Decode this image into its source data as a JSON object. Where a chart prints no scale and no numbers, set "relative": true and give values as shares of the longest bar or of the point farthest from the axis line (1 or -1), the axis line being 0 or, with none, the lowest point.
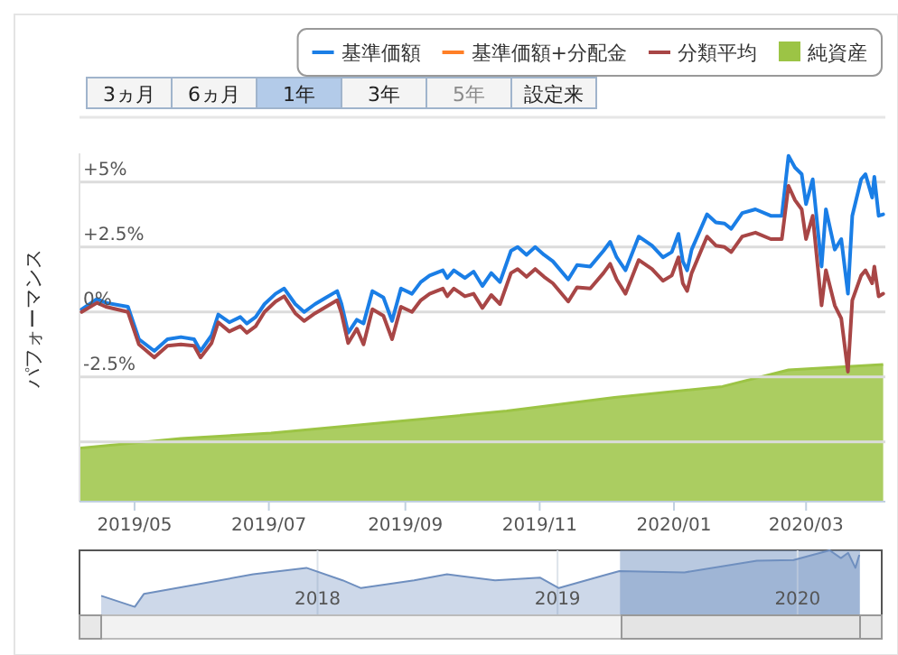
{
  "chart_data": [
    {
      "type": "line",
      "ylabel": "パフォーマンス",
      "legend": "top right",
      "grid": "y",
      "annotations": [
        "3ヵ月",
        "6ヵ月",
        "1年",
        "3年",
        "5年",
        "設定来"
      ],
      "xlim": [
        "2019-04-06",
        "2020-04-06"
      ],
      "ylim": [
        -7.3,
        6.1
      ],
      "xticks": [
        {
          "value": "2019-05-01",
          "label": "2019/05"
        },
        {
          "value": "2019-07-01",
          "label": "2019/07"
        },
        {
          "value": "2019-09-01",
          "label": "2019/09"
        },
        {
          "value": "2019-11-01",
          "label": "2019/11"
        },
        {
          "value": "2020-01-01",
          "label": "2020/01"
        },
        {
          "value": "2020-03-01",
          "label": "2020/03"
        }
      ],
      "yticks": [
        {
          "value": 5,
          "label": "+5%"
        },
        {
          "value": 2.5,
          "label": "+2.5%"
        },
        {
          "value": 0,
          "label": "0%"
        },
        {
          "value": -2.5,
          "label": "-2.5%"
        },
        {
          "value": -5,
          "label": null
        }
      ],
      "x": [
        "2019-04-07",
        "2019-04-14",
        "2019-04-18",
        "2019-04-28",
        "2019-05-03",
        "2019-05-10",
        "2019-05-16",
        "2019-05-22",
        "2019-05-28",
        "2019-05-31",
        "2019-06-05",
        "2019-06-08",
        "2019-06-13",
        "2019-06-18",
        "2019-06-21",
        "2019-06-25",
        "2019-06-29",
        "2019-07-04",
        "2019-07-08",
        "2019-07-13",
        "2019-07-17",
        "2019-07-22",
        "2019-07-27",
        "2019-08-01",
        "2019-08-03",
        "2019-08-06",
        "2019-08-10",
        "2019-08-13",
        "2019-08-17",
        "2019-08-22",
        "2019-08-26",
        "2019-08-30",
        "2019-09-04",
        "2019-09-08",
        "2019-09-12",
        "2019-09-18",
        "2019-09-20",
        "2019-09-23",
        "2019-09-28",
        "2019-10-02",
        "2019-10-06",
        "2019-10-10",
        "2019-10-14",
        "2019-10-19",
        "2019-10-22",
        "2019-10-26",
        "2019-10-30",
        "2019-11-03",
        "2019-11-07",
        "2019-11-14",
        "2019-11-18",
        "2019-11-24",
        "2019-11-30",
        "2019-12-03",
        "2019-12-06",
        "2019-12-10",
        "2019-12-16",
        "2019-12-22",
        "2019-12-27",
        "2019-12-31",
        "2020-01-03",
        "2020-01-05",
        "2020-01-07",
        "2020-01-09",
        "2020-01-16",
        "2020-01-20",
        "2020-01-24",
        "2020-01-27",
        "2020-02-01",
        "2020-02-07",
        "2020-02-14",
        "2020-02-19",
        "2020-02-22",
        "2020-02-25",
        "2020-02-28",
        "2020-03-01",
        "2020-03-04",
        "2020-03-08",
        "2020-03-10",
        "2020-03-14",
        "2020-03-17",
        "2020-03-20",
        "2020-03-22",
        "2020-03-26",
        "2020-03-28",
        "2020-03-31",
        "2020-04-01",
        "2020-04-03",
        "2020-04-05"
      ],
      "series": [
        {
          "name": "基準価額",
          "color": "#1a7ee6",
          "values": [
            0.1,
            0.5,
            0.35,
            0.2,
            -1.05,
            -1.5,
            -1.05,
            -0.97,
            -1.05,
            -1.5,
            -0.9,
            -0.1,
            -0.4,
            -0.2,
            -0.45,
            -0.2,
            0.3,
            0.7,
            0.9,
            0.3,
            0.0,
            0.3,
            0.55,
            0.8,
            0.3,
            -0.8,
            -0.3,
            -0.45,
            0.8,
            0.55,
            -0.35,
            0.9,
            0.7,
            1.15,
            1.4,
            1.6,
            1.3,
            1.6,
            1.3,
            1.55,
            1.0,
            1.5,
            1.15,
            2.35,
            2.5,
            2.2,
            2.5,
            2.2,
            1.95,
            1.25,
            1.8,
            1.75,
            2.35,
            2.7,
            2.1,
            1.6,
            2.9,
            2.55,
            2.1,
            2.3,
            3.0,
            1.95,
            1.6,
            2.4,
            3.75,
            3.45,
            3.4,
            3.2,
            3.8,
            3.95,
            3.7,
            3.7,
            6.0,
            5.55,
            5.3,
            4.15,
            5.1,
            1.75,
            3.95,
            2.4,
            2.8,
            0.7,
            3.7,
            5.1,
            5.3,
            4.4,
            5.2,
            3.7,
            3.75
          ]
        },
        {
          "name": "基準価額+分配金",
          "color": "#ff7f27",
          "values": [
            null,
            null,
            null,
            null,
            null,
            null,
            null,
            null,
            null,
            null,
            null,
            null,
            null,
            null,
            null,
            null,
            null,
            null,
            null,
            null,
            null,
            null,
            null,
            null,
            null,
            null,
            null,
            null,
            null,
            null,
            null,
            null,
            null,
            null,
            null,
            null,
            null,
            null,
            null,
            null,
            null,
            null,
            null,
            null,
            null,
            null,
            null,
            null,
            null,
            null,
            null,
            null,
            null,
            null,
            null,
            null,
            null,
            null,
            null,
            null,
            null,
            null,
            null,
            null,
            null,
            null,
            null,
            null,
            null,
            null,
            null,
            null,
            null,
            null,
            null,
            null,
            null,
            null,
            null,
            null,
            null,
            null,
            null,
            null,
            null,
            null,
            null,
            null,
            null
          ]
        },
        {
          "name": "分類平均",
          "color": "#a84646",
          "values": [
            0.0,
            0.35,
            0.2,
            0.0,
            -1.25,
            -1.75,
            -1.3,
            -1.25,
            -1.3,
            -1.75,
            -1.2,
            -0.4,
            -0.75,
            -0.55,
            -0.8,
            -0.55,
            0.0,
            0.4,
            0.6,
            -0.05,
            -0.35,
            -0.05,
            0.2,
            0.45,
            -0.05,
            -1.2,
            -0.65,
            -1.25,
            0.1,
            -0.15,
            -1.05,
            0.2,
            0.0,
            0.45,
            0.7,
            0.9,
            0.6,
            0.9,
            0.6,
            0.7,
            0.15,
            0.65,
            0.3,
            1.5,
            1.65,
            1.35,
            1.65,
            1.35,
            1.1,
            0.4,
            0.95,
            0.9,
            1.5,
            1.85,
            1.25,
            0.7,
            2.0,
            1.65,
            1.2,
            1.4,
            2.1,
            1.1,
            0.8,
            1.5,
            2.9,
            2.55,
            2.5,
            2.3,
            2.9,
            3.05,
            2.8,
            2.8,
            4.85,
            4.3,
            3.95,
            2.8,
            3.7,
            0.25,
            1.6,
            0.25,
            -0.25,
            -2.3,
            0.45,
            1.4,
            1.6,
            1.1,
            1.75,
            0.6,
            0.7
          ]
        }
      ]
    },
    {
      "type": "area",
      "relative": true,
      "xlim": [
        "2019-04-06",
        "2020-04-06"
      ],
      "x": [
        "2019-04-06",
        "2019-05-22",
        "2019-07-02",
        "2019-08-12",
        "2019-10-17",
        "2019-12-05",
        "2020-01-23",
        "2020-02-22",
        "2020-04-05"
      ],
      "series": [
        {
          "name": "純資産",
          "color": "#9cc445",
          "values": [
            0.39,
            0.46,
            0.5,
            0.56,
            0.66,
            0.76,
            0.84,
            0.96,
            1.0
          ]
        }
      ]
    },
    {
      "type": "area",
      "relative": true,
      "grid": "x",
      "xlim": [
        "2017-01-04",
        "2020-05-08"
      ],
      "xticks": [
        {
          "value": "2018-01-01",
          "label": "2018"
        },
        {
          "value": "2019-01-01",
          "label": "2019"
        },
        {
          "value": "2020-01-01",
          "label": "2020"
        }
      ],
      "bands": [
        {
          "axis": "x",
          "from": "2019-04-06",
          "to": "2020-04-05",
          "color": "#7f9dc6"
        }
      ],
      "x": [
        "2017-02-06",
        "2017-03-29",
        "2017-04-12",
        "2017-06-07",
        "2017-09-25",
        "2017-12-15",
        "2018-02-08",
        "2018-03-08",
        "2018-05-28",
        "2018-07-17",
        "2018-09-28",
        "2018-12-05",
        "2019-01-03",
        "2019-03-11",
        "2019-04-05",
        "2019-07-13",
        "2019-10-31",
        "2019-12-26",
        "2020-02-19",
        "2020-03-07",
        "2020-03-18",
        "2020-03-29",
        "2020-04-04"
      ],
      "series": [
        {
          "color": "#6f8fbf",
          "values": [
            0.3,
            0.13,
            0.33,
            0.43,
            0.63,
            0.73,
            0.54,
            0.42,
            0.54,
            0.63,
            0.54,
            0.58,
            0.42,
            0.61,
            0.68,
            0.66,
            0.84,
            0.85,
            1.0,
            0.88,
            0.96,
            0.73,
            0.93
          ]
        }
      ]
    }
  ]
}
